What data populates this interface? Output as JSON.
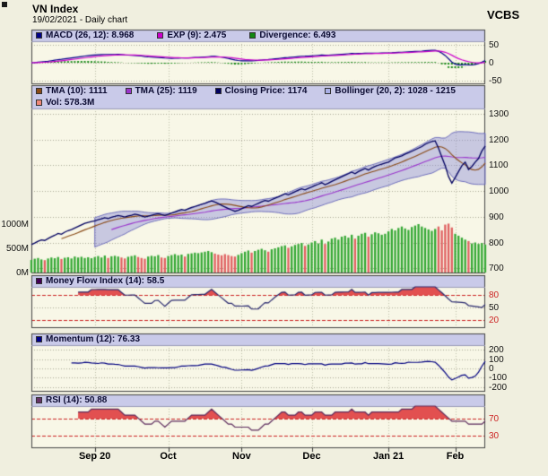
{
  "header": {
    "title": "VN Index",
    "subtitle": "19/02/2021 - Daily chart",
    "brand": "VCBS"
  },
  "panels": {
    "macd": {
      "items": [
        {
          "label": "MACD (26, 12): 8.968",
          "color": "#000088"
        },
        {
          "label": "EXP (9): 2.475",
          "color": "#cc00cc"
        },
        {
          "label": "Divergence: 6.493",
          "color": "#118811"
        }
      ],
      "yticks": [
        {
          "v": 50,
          "label": "50"
        },
        {
          "v": 0,
          "label": "0"
        },
        {
          "v": -50,
          "label": "-50"
        }
      ]
    },
    "price": {
      "row1": [
        {
          "label": "TMA (10): 1111",
          "color": "#8a4a16"
        },
        {
          "label": "TMA (25): 1119",
          "color": "#9a35cc"
        },
        {
          "label": "Closing Price: 1174",
          "color": "#000060"
        },
        {
          "label": "Bollinger (20, 2): 1028 - 1215",
          "color": "#aab0e6"
        }
      ],
      "row2": [
        {
          "label": "Vol: 578.3M",
          "color": "#f08878"
        }
      ],
      "yticks": [
        {
          "v": 1300,
          "label": "1300"
        },
        {
          "v": 1200,
          "label": "1200"
        },
        {
          "v": 1100,
          "label": "1100"
        },
        {
          "v": 1000,
          "label": "1000"
        },
        {
          "v": 900,
          "label": "900"
        },
        {
          "v": 800,
          "label": "800"
        },
        {
          "v": 700,
          "label": "700"
        }
      ],
      "vol_ticks": [
        {
          "v": 1000,
          "label": "1000M"
        },
        {
          "v": 500,
          "label": "500M"
        },
        {
          "v": 0,
          "label": "0M"
        }
      ]
    },
    "mfi": {
      "items": [
        {
          "label": "Money Flow Index (14): 58.5",
          "color": "#440055"
        }
      ],
      "yticks": [
        {
          "v": 80,
          "label": "80",
          "color": "#cc2222",
          "threshold": true
        },
        {
          "v": 50,
          "label": "50"
        },
        {
          "v": 20,
          "label": "20",
          "color": "#cc2222",
          "threshold": true
        }
      ]
    },
    "momentum": {
      "items": [
        {
          "label": "Momentum (12): 76.33",
          "color": "#000088"
        }
      ],
      "yticks": [
        {
          "v": 200,
          "label": "200"
        },
        {
          "v": 100,
          "label": "100"
        },
        {
          "v": 0,
          "label": "0"
        },
        {
          "v": -100,
          "label": "-100"
        },
        {
          "v": -200,
          "label": "-200"
        }
      ]
    },
    "rsi": {
      "items": [
        {
          "label": "RSI (14): 50.88",
          "color": "#663366"
        }
      ],
      "yticks": [
        {
          "v": 70,
          "label": "70",
          "color": "#cc2222",
          "threshold": true
        },
        {
          "v": 30,
          "label": "30",
          "color": "#cc2222",
          "threshold": true
        }
      ]
    }
  },
  "chart_data": {
    "type": "line",
    "subtype": "multi-panel daily stock chart with volume, bollinger bands and oscillators",
    "title": "VN Index - 19/02/2021 - Daily chart",
    "legend_position": "top",
    "grid": true,
    "x_axis": {
      "total_days": 137,
      "months": [
        {
          "label": "Sep 20",
          "day_index": 19
        },
        {
          "label": "Oct",
          "day_index": 41
        },
        {
          "label": "Nov",
          "day_index": 63
        },
        {
          "label": "Dec",
          "day_index": 84
        },
        {
          "label": "Jan 21",
          "day_index": 107
        },
        {
          "label": "Feb",
          "day_index": 127
        }
      ]
    },
    "price_panel": {
      "ylim": [
        680,
        1320
      ],
      "volume_ylim_m": [
        0,
        1200
      ],
      "current": {
        "tma10": 1111,
        "tma25": 1119,
        "closing_price": 1174,
        "bollinger": "1028 - 1215",
        "volume": "578.3M"
      },
      "close": [
        792,
        798,
        805,
        810,
        808,
        815,
        822,
        828,
        835,
        832,
        840,
        846,
        850,
        856,
        862,
        868,
        874,
        878,
        881,
        884,
        888,
        892,
        896,
        893,
        898,
        901,
        905,
        902,
        899,
        903,
        906,
        910,
        907,
        903,
        899,
        902,
        906,
        909,
        912,
        908,
        905,
        909,
        914,
        919,
        924,
        928,
        925,
        931,
        936,
        940,
        944,
        948,
        952,
        957,
        961,
        957,
        951,
        944,
        938,
        932,
        926,
        921,
        925,
        931,
        937,
        943,
        940,
        946,
        952,
        958,
        963,
        960,
        966,
        972,
        977,
        983,
        989,
        985,
        991,
        997,
        1003,
        1008,
        1004,
        1010,
        1015,
        1021,
        1026,
        1032,
        1024,
        1030,
        1037,
        1043,
        1049,
        1055,
        1061,
        1067,
        1073,
        1067,
        1075,
        1081,
        1087,
        1081,
        1089,
        1095,
        1100,
        1104,
        1108,
        1112,
        1120,
        1128,
        1132,
        1136,
        1143,
        1148,
        1154,
        1160,
        1166,
        1172,
        1181,
        1187,
        1192,
        1194,
        1166,
        1131,
        1098,
        1056,
        1030,
        1052,
        1075,
        1098,
        1112,
        1083,
        1095,
        1112,
        1126,
        1155,
        1174
      ],
      "volume_m": [
        260,
        285,
        300,
        270,
        255,
        290,
        310,
        295,
        320,
        280,
        305,
        315,
        290,
        330,
        310,
        325,
        300,
        315,
        295,
        320,
        340,
        310,
        350,
        300,
        335,
        345,
        330,
        310,
        290,
        325,
        340,
        355,
        320,
        300,
        285,
        330,
        345,
        335,
        360,
        310,
        300,
        340,
        360,
        380,
        355,
        370,
        330,
        385,
        395,
        410,
        400,
        415,
        430,
        445,
        420,
        390,
        370,
        355,
        380,
        360,
        340,
        330,
        365,
        400,
        430,
        455,
        410,
        445,
        470,
        490,
        460,
        430,
        480,
        500,
        520,
        545,
        560,
        510,
        540,
        570,
        590,
        610,
        550,
        580,
        620,
        650,
        600,
        680,
        590,
        640,
        700,
        720,
        680,
        740,
        760,
        720,
        780,
        700,
        760,
        800,
        820,
        740,
        790,
        830,
        810,
        780,
        800,
        850,
        900,
        870,
        920,
        950,
        910,
        880,
        940,
        970,
        1000,
        950,
        920,
        890,
        860,
        900,
        950,
        870,
        990,
        1010,
        930,
        800,
        760,
        720,
        680,
        650,
        600,
        620,
        590,
        610,
        578
      ]
    },
    "macd_panel": {
      "ylim": [
        -60,
        60
      ],
      "current": {
        "macd": 8.968,
        "exp9": 2.475,
        "divergence": 6.493
      },
      "derived_from": "close: EMA12-EMA26, signal EMA9, histogram MACD-signal"
    },
    "mfi_panel": {
      "ylim": [
        0,
        100
      ],
      "thresholds": [
        80,
        20
      ],
      "current": 58.5,
      "derived_from": "close and volume, 14 periods"
    },
    "momentum_panel": {
      "ylim": [
        -250,
        250
      ],
      "current": 76.33,
      "derived_from": "close minus close 12 periods ago"
    },
    "rsi_panel": {
      "ylim": [
        0,
        100
      ],
      "thresholds": [
        70,
        30
      ],
      "current": 50.88,
      "derived_from": "close, 14 periods"
    }
  }
}
